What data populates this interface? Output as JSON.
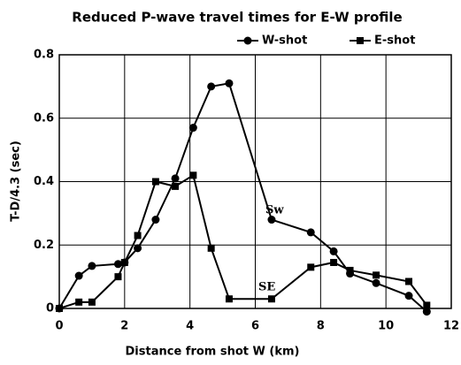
{
  "chart_data": {
    "type": "line",
    "title": "Reduced P-wave travel times for E-W profile",
    "x_label": "Distance from shot W  (km)",
    "y_label": "T-D/4.3 (sec)",
    "x": [
      0,
      0.6,
      1.0,
      1.8,
      2.0,
      2.4,
      2.95,
      3.55,
      4.1,
      4.65,
      5.2,
      6.5,
      7.7,
      8.4,
      8.9,
      9.7,
      10.7,
      11.25
    ],
    "series": [
      {
        "name": "W-shot",
        "color": "#000000",
        "marker": "circle",
        "values": [
          0,
          0.103,
          0.134,
          0.14,
          0.145,
          0.19,
          0.28,
          0.41,
          0.57,
          0.7,
          0.71,
          0.28,
          0.24,
          0.18,
          0.11,
          0.08,
          0.04,
          -0.01
        ]
      },
      {
        "name": "E-shot",
        "color": "#000000",
        "marker": "square",
        "values": [
          0,
          0.02,
          0.02,
          0.1,
          0.145,
          0.23,
          0.4,
          0.385,
          0.42,
          0.19,
          0.03,
          0.03,
          0.13,
          0.145,
          0.12,
          0.105,
          0.085,
          0.01
        ]
      }
    ],
    "annotations": [
      "Sw",
      "SE"
    ],
    "xlim": [
      0,
      12
    ],
    "xticks": [
      0,
      2,
      4,
      6,
      8,
      10,
      12
    ],
    "ylim": [
      0,
      0.8
    ],
    "yticks": [
      0,
      0.2,
      0.4,
      0.6,
      0.8
    ],
    "grid": true,
    "legend": "top-right"
  }
}
